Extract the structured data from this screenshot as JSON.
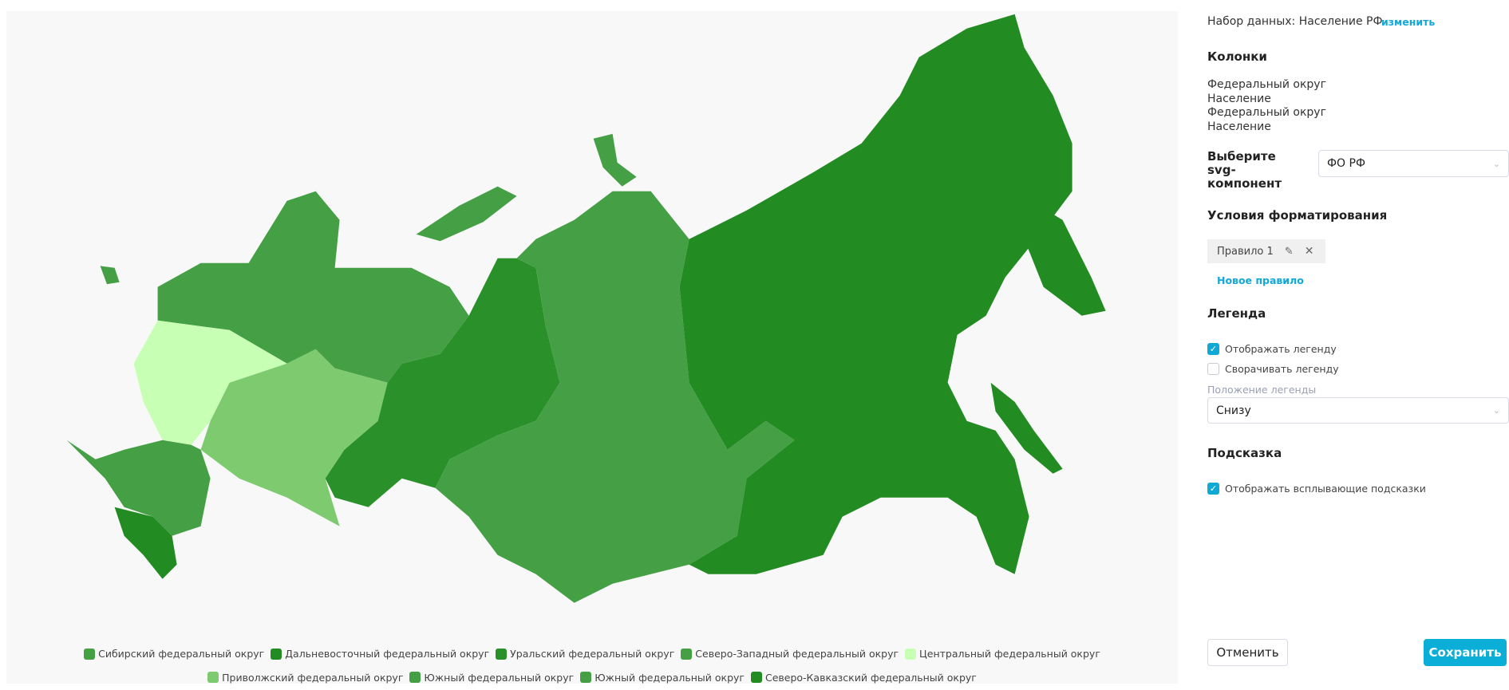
{
  "colors": {
    "dark": "#228b22",
    "medium": "#45a045",
    "light": "#c7ffb5",
    "mid_light": "#7dca6f",
    "accent": "#0fa9d6"
  },
  "legend": [
    {
      "label": "Сибирский федеральный округ",
      "color": "#45a045"
    },
    {
      "label": "Дальневосточный федеральный округ",
      "color": "#228b22"
    },
    {
      "label": "Уральский федеральный округ",
      "color": "#2a912a"
    },
    {
      "label": "Северо-Западный федеральный округ",
      "color": "#45a045"
    },
    {
      "label": "Центральный федеральный округ",
      "color": "#c7ffb5"
    },
    {
      "label": "Приволжский федеральный округ",
      "color": "#7dca6f"
    },
    {
      "label": "Южный федеральный округ",
      "color": "#45a045"
    },
    {
      "label": "Южный федеральный округ",
      "color": "#45a045"
    },
    {
      "label": "Северо-Кавказский федеральный округ",
      "color": "#228b22"
    }
  ],
  "panel": {
    "dataset_label": "Набор данных: Население РФ",
    "change_link": "изменить",
    "columns_title": "Колонки",
    "columns": [
      "Федеральный округ",
      "Население",
      "Федеральный округ",
      "Население"
    ],
    "svg_label": "Выберите svg-компонент",
    "svg_value": "ФО РФ",
    "format_title": "Условия форматирования",
    "rule_label": "Правило 1",
    "new_rule": "Новое правило",
    "legend_title": "Легенда",
    "show_legend": {
      "label": "Отображать легенду",
      "checked": true
    },
    "collapse_legend": {
      "label": "Сворачивать легенду",
      "checked": false
    },
    "legend_pos_label": "Положение легенды",
    "legend_pos_value": "Снизу",
    "tooltip_title": "Подсказка",
    "show_tooltips": {
      "label": "Отображать всплывающие подсказки",
      "checked": true
    },
    "cancel": "Отменить",
    "save": "Сохранить"
  }
}
